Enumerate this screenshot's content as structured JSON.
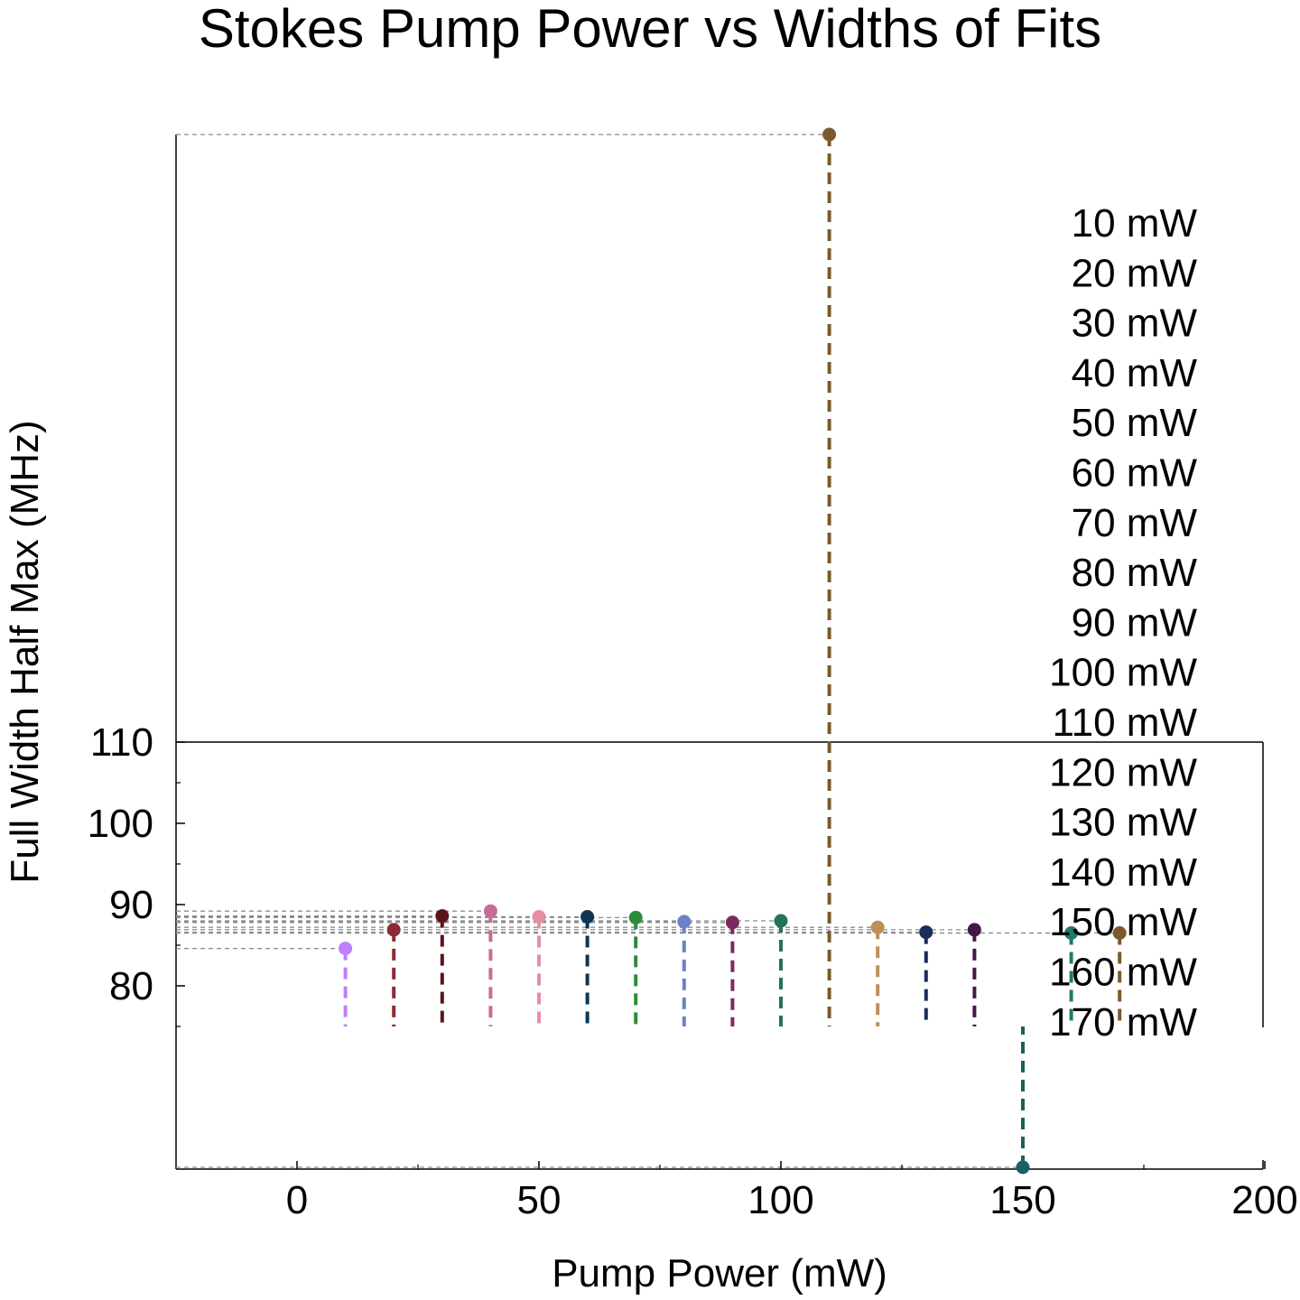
{
  "chart_data": {
    "type": "scatter",
    "title": "Stokes Pump Power vs Widths of Fits",
    "xlabel": "Pump Power (mW)",
    "ylabel": "Full Width Half Max (MHz)",
    "xlim": [
      -25,
      200
    ],
    "x_ticks": [
      0,
      50,
      100,
      150,
      200
    ],
    "y_ticks": [
      80,
      90,
      100,
      110
    ],
    "y_frame_top": 110,
    "y_stem_base": 75,
    "grid": false,
    "legend_position": "right",
    "series": [
      {
        "name": "10 mW",
        "x": 10,
        "y": 84.6,
        "color": "#bf7fff"
      },
      {
        "name": "20 mW",
        "x": 20,
        "y": 86.9,
        "color": "#8b2c34"
      },
      {
        "name": "30 mW",
        "x": 30,
        "y": 88.6,
        "color": "#5a1418"
      },
      {
        "name": "40 mW",
        "x": 40,
        "y": 89.2,
        "color": "#c86b96"
      },
      {
        "name": "50 mW",
        "x": 50,
        "y": 88.5,
        "color": "#e58fa3"
      },
      {
        "name": "60 mW",
        "x": 60,
        "y": 88.5,
        "color": "#0d3653"
      },
      {
        "name": "70 mW",
        "x": 70,
        "y": 88.4,
        "color": "#2e8b3a"
      },
      {
        "name": "80 mW",
        "x": 80,
        "y": 87.9,
        "color": "#6a82c8"
      },
      {
        "name": "90 mW",
        "x": 90,
        "y": 87.8,
        "color": "#7b2a5e"
      },
      {
        "name": "100 mW",
        "x": 100,
        "y": 88.0,
        "color": "#247358"
      },
      {
        "name": "110 mW",
        "x": 110,
        "y": 185.0,
        "color": "#7a5a2c"
      },
      {
        "name": "120 mW",
        "x": 120,
        "y": 87.2,
        "color": "#bf8f5a"
      },
      {
        "name": "130 mW",
        "x": 130,
        "y": 86.6,
        "color": "#1b2d5c"
      },
      {
        "name": "140 mW",
        "x": 140,
        "y": 86.9,
        "color": "#441846"
      },
      {
        "name": "150 mW",
        "x": 150,
        "y": 58.0,
        "color": "#17625f"
      },
      {
        "name": "160 mW",
        "x": 160,
        "y": 86.5,
        "color": "#21796a"
      },
      {
        "name": "170 mW",
        "x": 170,
        "y": 86.5,
        "color": "#7a5a2c"
      }
    ]
  }
}
